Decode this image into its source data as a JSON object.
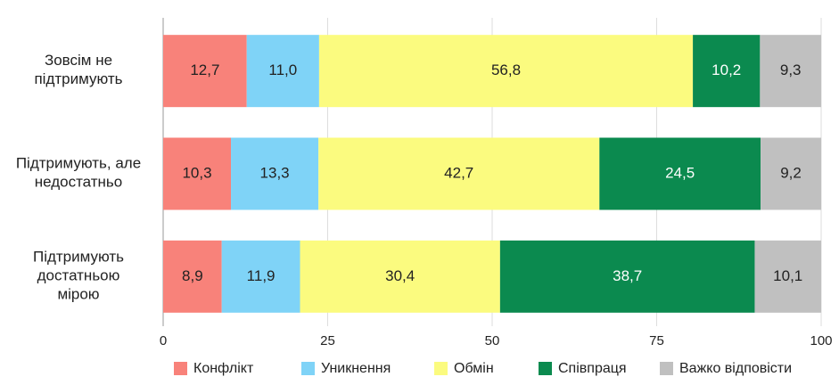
{
  "chart_data": {
    "type": "stacked-bar-horizontal",
    "categories": [
      "Зовсім не\nпідтримують",
      "Підтримують, але\nнедостатньо",
      "Підтримують\nдостатньою\nмірою"
    ],
    "series": [
      {
        "name": "Конфлікт",
        "color": "#f8827a",
        "values": [
          12.7,
          10.3,
          8.9
        ],
        "value_labels": [
          "12,7",
          "10,3",
          "8,9"
        ]
      },
      {
        "name": "Уникнення",
        "color": "#7fd3f7",
        "values": [
          11.0,
          13.3,
          11.9
        ],
        "value_labels": [
          "11,0",
          "13,3",
          "11,9"
        ]
      },
      {
        "name": "Обмін",
        "color": "#fbfb7f",
        "values": [
          56.8,
          42.7,
          30.4
        ],
        "value_labels": [
          "56,8",
          "42,7",
          "30,4"
        ]
      },
      {
        "name": "Співпраця",
        "color": "#0b8a4f",
        "values": [
          10.2,
          24.5,
          38.7
        ],
        "value_labels": [
          "10,2",
          "24,5",
          "38,7"
        ]
      },
      {
        "name": "Важко відповісти",
        "color": "#c0c0c0",
        "values": [
          9.3,
          9.2,
          10.1
        ],
        "value_labels": [
          "9,3",
          "9,2",
          "10,1"
        ]
      }
    ],
    "xlim": [
      0,
      100
    ],
    "xticks": [
      0,
      25,
      50,
      75,
      100
    ],
    "grid": true,
    "legend": "bottom"
  }
}
